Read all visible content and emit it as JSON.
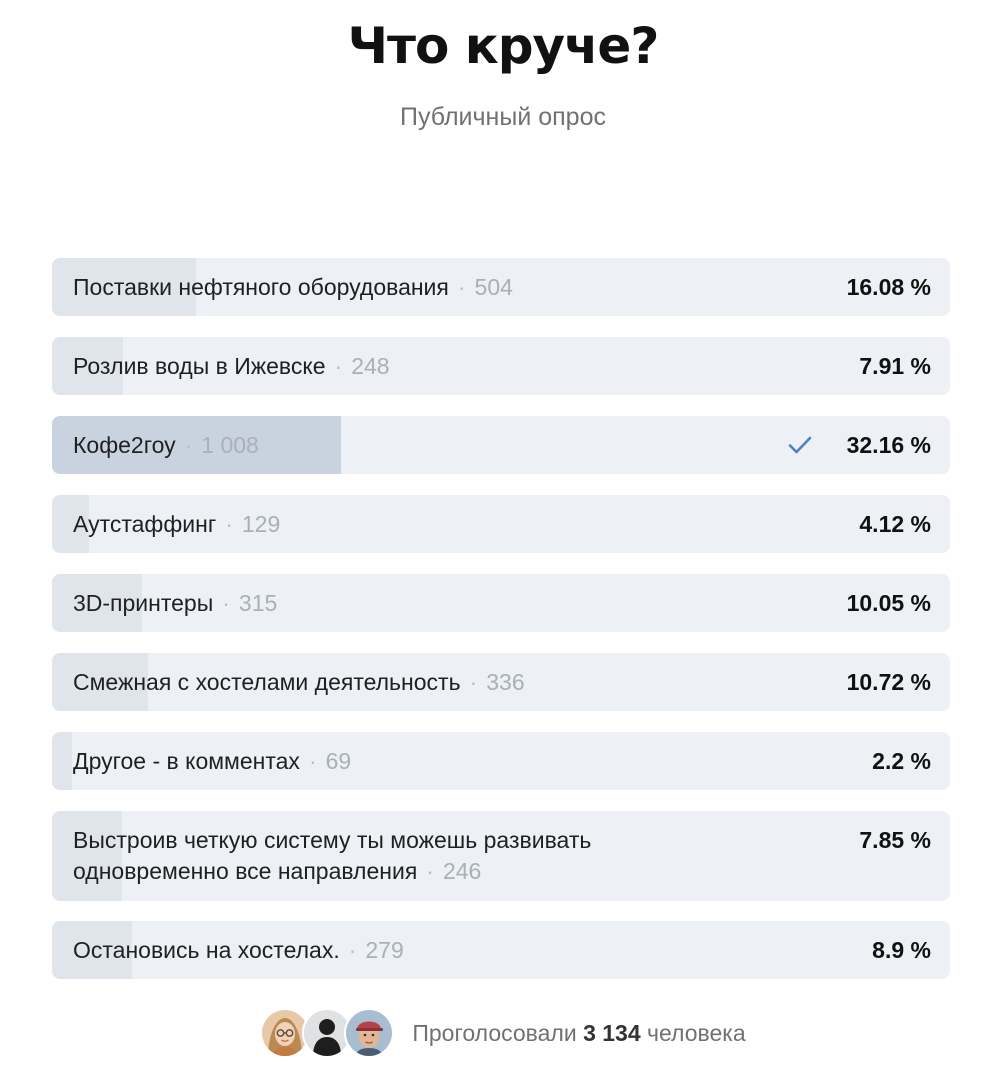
{
  "poll": {
    "title": "Что круче?",
    "subtitle": "Публичный опрос",
    "separator": "·",
    "options": [
      {
        "label": "Поставки нефтяного оборудования",
        "count": "504",
        "percent": "16.08 %",
        "share": 0.1608,
        "voted": false
      },
      {
        "label": "Розлив воды в Ижевске",
        "count": "248",
        "percent": "7.91 %",
        "share": 0.0791,
        "voted": false
      },
      {
        "label": "Кофе2гоу",
        "count": "1 008",
        "percent": "32.16 %",
        "share": 0.3216,
        "voted": true
      },
      {
        "label": "Аутстаффинг",
        "count": "129",
        "percent": "4.12 %",
        "share": 0.0412,
        "voted": false
      },
      {
        "label": "3D-принтеры",
        "count": "315",
        "percent": "10.05 %",
        "share": 0.1005,
        "voted": false
      },
      {
        "label": "Смежная с хостелами деятельность",
        "count": "336",
        "percent": "10.72 %",
        "share": 0.1072,
        "voted": false
      },
      {
        "label": "Другое - в комментах",
        "count": "69",
        "percent": "2.2 %",
        "share": 0.022,
        "voted": false
      },
      {
        "label": "Выстроив четкую систему ты можешь развивать одновременно все направления",
        "count": "246",
        "percent": "7.85 %",
        "share": 0.0785,
        "voted": false
      },
      {
        "label": "Остановись на хостелах.",
        "count": "279",
        "percent": "8.9 %",
        "share": 0.089,
        "voted": false
      }
    ],
    "footer": {
      "prefix": "Проголосовали",
      "total": "3 134",
      "suffix": "человека",
      "avatars": [
        "avatar-woman-glasses",
        "avatar-dark-silhouette",
        "avatar-man-cap"
      ]
    }
  },
  "colors": {
    "bar_background": "#edf0f4",
    "bar_fill": "#e0e5ec",
    "bar_fill_voted": "#c9d3df",
    "check_accent": "#5181b8"
  }
}
